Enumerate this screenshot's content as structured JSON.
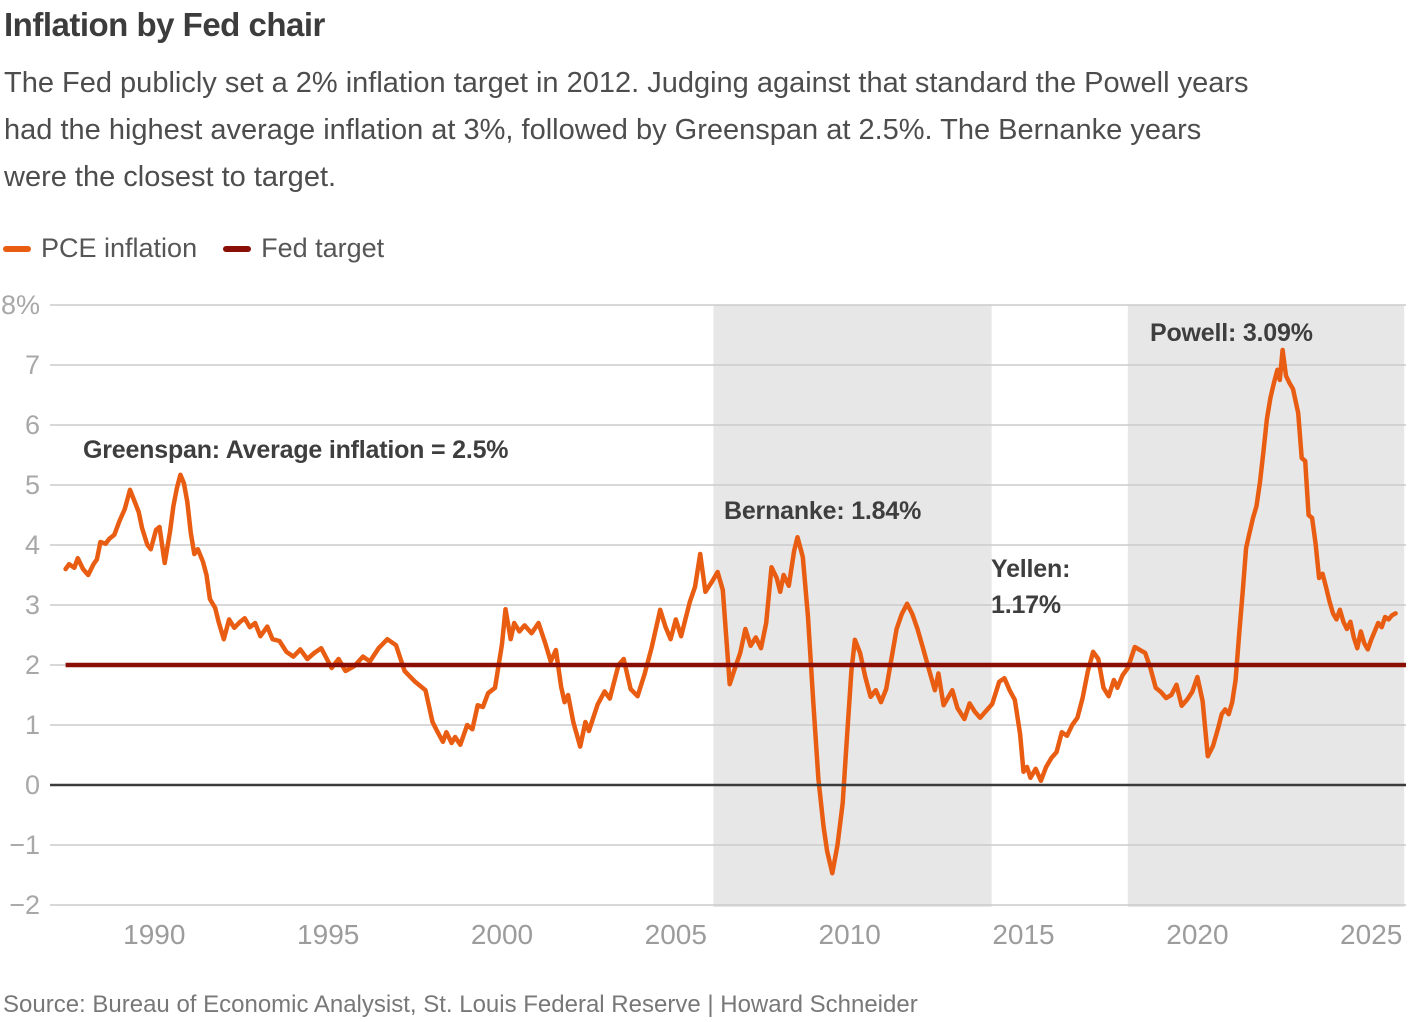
{
  "header": {
    "title": "Inflation by Fed chair",
    "subtitle_lines": [
      "The Fed publicly set a 2% inflation target in 2012. Judging against that standard the Powell years",
      "had the highest average inflation at 3%, followed by Greenspan at 2.5%. The Bernanke years",
      "were the closest to target."
    ]
  },
  "legend": {
    "items": [
      {
        "label": "PCE inflation",
        "color": "#E95D12"
      },
      {
        "label": "Fed target",
        "color": "#8A0E04"
      }
    ]
  },
  "source": "Source: Bureau of Economic Analysist, St. Louis Federal Reserve | Howard Schneider",
  "colors": {
    "pce_line": "#E95D12",
    "fed_target": "#8A0E04",
    "band": "#E7E7E7",
    "grid": "#CBCBCB",
    "zero_line": "#3B3B3B",
    "y_axis_label": "#A8A8A8",
    "x_axis_label": "#9C9C9C",
    "annotation_text": "#3E3E3E",
    "title_text": "#3C3C3C",
    "subtitle_text": "#4D4D4D",
    "source_text": "#787878",
    "background": "#FFFFFF"
  },
  "chart_data": {
    "type": "line",
    "grid": true,
    "legend_position": "top-left",
    "x_domain": [
      1987,
      2026
    ],
    "y_domain": [
      -2,
      8
    ],
    "x_ticks": [
      1990,
      1995,
      2000,
      2005,
      2010,
      2015,
      2020,
      2025
    ],
    "y_ticks": [
      {
        "value": 8,
        "label": "8%"
      },
      {
        "value": 7,
        "label": "7"
      },
      {
        "value": 6,
        "label": "6"
      },
      {
        "value": 5,
        "label": "5"
      },
      {
        "value": 4,
        "label": "4"
      },
      {
        "value": 3,
        "label": "3"
      },
      {
        "value": 2,
        "label": "2"
      },
      {
        "value": 1,
        "label": "1"
      },
      {
        "value": 0,
        "label": "0"
      },
      {
        "value": -1,
        "label": "−1"
      },
      {
        "value": -2,
        "label": "−2"
      }
    ],
    "bands": [
      {
        "name": "bernanke-era",
        "x0": 2006.08,
        "x1": 2014.08
      },
      {
        "name": "powell-era",
        "x0": 2018.0,
        "x1": 2025.95
      }
    ],
    "target_line": {
      "label": "Fed target",
      "value": 2,
      "x0": 1987.45
    },
    "annotations": [
      {
        "name": "greenspan",
        "text": "Greenspan: Average inflation = 2.5%",
        "anchor_year": 1988.0,
        "anchor_value": 5.8
      },
      {
        "name": "bernanke",
        "text": "Bernanke: 1.84%",
        "anchor_year": 2006.4,
        "anchor_value": 4.7
      },
      {
        "name": "yellen",
        "text": "Yellen: 1.17%",
        "lines": [
          "Yellen:",
          "1.17%"
        ],
        "anchor_year": 2014.1,
        "anchor_value": 3.85
      },
      {
        "name": "powell",
        "text": "Powell: 3.09%",
        "anchor_year": 2018.6,
        "anchor_value": 7.7
      }
    ],
    "series": [
      {
        "name": "PCE inflation",
        "color": "#E95D12",
        "points": [
          [
            1987.45,
            3.6
          ],
          [
            1987.55,
            3.68
          ],
          [
            1987.7,
            3.62
          ],
          [
            1987.8,
            3.78
          ],
          [
            1987.95,
            3.6
          ],
          [
            1988.1,
            3.5
          ],
          [
            1988.25,
            3.68
          ],
          [
            1988.35,
            3.76
          ],
          [
            1988.45,
            4.05
          ],
          [
            1988.6,
            4.02
          ],
          [
            1988.7,
            4.1
          ],
          [
            1988.85,
            4.17
          ],
          [
            1989.0,
            4.4
          ],
          [
            1989.15,
            4.6
          ],
          [
            1989.3,
            4.92
          ],
          [
            1989.45,
            4.7
          ],
          [
            1989.55,
            4.55
          ],
          [
            1989.65,
            4.28
          ],
          [
            1989.8,
            4.0
          ],
          [
            1989.9,
            3.93
          ],
          [
            1990.05,
            4.25
          ],
          [
            1990.15,
            4.3
          ],
          [
            1990.3,
            3.7
          ],
          [
            1990.45,
            4.22
          ],
          [
            1990.55,
            4.65
          ],
          [
            1990.65,
            4.95
          ],
          [
            1990.75,
            5.17
          ],
          [
            1990.85,
            5.03
          ],
          [
            1990.95,
            4.72
          ],
          [
            1991.05,
            4.2
          ],
          [
            1991.15,
            3.85
          ],
          [
            1991.25,
            3.93
          ],
          [
            1991.4,
            3.72
          ],
          [
            1991.5,
            3.5
          ],
          [
            1991.6,
            3.1
          ],
          [
            1991.75,
            2.95
          ],
          [
            1991.85,
            2.72
          ],
          [
            1992.0,
            2.43
          ],
          [
            1992.15,
            2.76
          ],
          [
            1992.3,
            2.62
          ],
          [
            1992.45,
            2.71
          ],
          [
            1992.6,
            2.78
          ],
          [
            1992.75,
            2.63
          ],
          [
            1992.9,
            2.7
          ],
          [
            1993.05,
            2.48
          ],
          [
            1993.25,
            2.64
          ],
          [
            1993.4,
            2.43
          ],
          [
            1993.6,
            2.4
          ],
          [
            1993.8,
            2.22
          ],
          [
            1994.0,
            2.14
          ],
          [
            1994.2,
            2.26
          ],
          [
            1994.4,
            2.1
          ],
          [
            1994.6,
            2.2
          ],
          [
            1994.8,
            2.28
          ],
          [
            1995.1,
            1.95
          ],
          [
            1995.3,
            2.1
          ],
          [
            1995.5,
            1.9
          ],
          [
            1995.75,
            1.98
          ],
          [
            1996.0,
            2.14
          ],
          [
            1996.2,
            2.06
          ],
          [
            1996.45,
            2.28
          ],
          [
            1996.7,
            2.43
          ],
          [
            1996.95,
            2.33
          ],
          [
            1997.2,
            1.9
          ],
          [
            1997.5,
            1.72
          ],
          [
            1997.8,
            1.58
          ],
          [
            1998.0,
            1.05
          ],
          [
            1998.15,
            0.88
          ],
          [
            1998.3,
            0.72
          ],
          [
            1998.4,
            0.88
          ],
          [
            1998.55,
            0.7
          ],
          [
            1998.65,
            0.8
          ],
          [
            1998.8,
            0.67
          ],
          [
            1999.0,
            1.0
          ],
          [
            1999.15,
            0.93
          ],
          [
            1999.3,
            1.33
          ],
          [
            1999.45,
            1.3
          ],
          [
            1999.6,
            1.53
          ],
          [
            1999.8,
            1.62
          ],
          [
            2000.0,
            2.35
          ],
          [
            2000.1,
            2.93
          ],
          [
            2000.25,
            2.43
          ],
          [
            2000.35,
            2.7
          ],
          [
            2000.5,
            2.56
          ],
          [
            2000.65,
            2.66
          ],
          [
            2000.85,
            2.53
          ],
          [
            2001.05,
            2.7
          ],
          [
            2001.25,
            2.35
          ],
          [
            2001.4,
            2.06
          ],
          [
            2001.55,
            2.25
          ],
          [
            2001.7,
            1.64
          ],
          [
            2001.8,
            1.38
          ],
          [
            2001.9,
            1.5
          ],
          [
            2002.05,
            1.05
          ],
          [
            2002.25,
            0.64
          ],
          [
            2002.4,
            1.05
          ],
          [
            2002.5,
            0.9
          ],
          [
            2002.75,
            1.34
          ],
          [
            2002.95,
            1.56
          ],
          [
            2003.1,
            1.44
          ],
          [
            2003.35,
            2.0
          ],
          [
            2003.5,
            2.1
          ],
          [
            2003.7,
            1.6
          ],
          [
            2003.9,
            1.48
          ],
          [
            2004.1,
            1.85
          ],
          [
            2004.3,
            2.28
          ],
          [
            2004.55,
            2.92
          ],
          [
            2004.7,
            2.64
          ],
          [
            2004.85,
            2.43
          ],
          [
            2005.0,
            2.76
          ],
          [
            2005.15,
            2.48
          ],
          [
            2005.4,
            3.05
          ],
          [
            2005.55,
            3.3
          ],
          [
            2005.7,
            3.85
          ],
          [
            2005.85,
            3.22
          ],
          [
            2006.05,
            3.4
          ],
          [
            2006.2,
            3.55
          ],
          [
            2006.35,
            3.25
          ],
          [
            2006.55,
            1.68
          ],
          [
            2006.7,
            1.95
          ],
          [
            2006.85,
            2.2
          ],
          [
            2007.0,
            2.6
          ],
          [
            2007.15,
            2.32
          ],
          [
            2007.3,
            2.46
          ],
          [
            2007.45,
            2.28
          ],
          [
            2007.6,
            2.7
          ],
          [
            2007.75,
            3.63
          ],
          [
            2007.9,
            3.45
          ],
          [
            2008.0,
            3.22
          ],
          [
            2008.1,
            3.5
          ],
          [
            2008.25,
            3.32
          ],
          [
            2008.4,
            3.9
          ],
          [
            2008.5,
            4.13
          ],
          [
            2008.65,
            3.8
          ],
          [
            2008.8,
            2.8
          ],
          [
            2008.95,
            1.4
          ],
          [
            2009.1,
            0.1
          ],
          [
            2009.25,
            -0.7
          ],
          [
            2009.35,
            -1.1
          ],
          [
            2009.5,
            -1.47
          ],
          [
            2009.65,
            -1.0
          ],
          [
            2009.8,
            -0.3
          ],
          [
            2009.9,
            0.6
          ],
          [
            2010.05,
            1.9
          ],
          [
            2010.15,
            2.42
          ],
          [
            2010.3,
            2.2
          ],
          [
            2010.45,
            1.8
          ],
          [
            2010.6,
            1.47
          ],
          [
            2010.75,
            1.58
          ],
          [
            2010.9,
            1.38
          ],
          [
            2011.05,
            1.6
          ],
          [
            2011.2,
            2.1
          ],
          [
            2011.35,
            2.6
          ],
          [
            2011.5,
            2.85
          ],
          [
            2011.65,
            3.02
          ],
          [
            2011.8,
            2.85
          ],
          [
            2011.95,
            2.6
          ],
          [
            2012.1,
            2.3
          ],
          [
            2012.3,
            1.88
          ],
          [
            2012.45,
            1.58
          ],
          [
            2012.55,
            1.86
          ],
          [
            2012.7,
            1.33
          ],
          [
            2012.85,
            1.48
          ],
          [
            2012.95,
            1.58
          ],
          [
            2013.1,
            1.28
          ],
          [
            2013.3,
            1.1
          ],
          [
            2013.45,
            1.36
          ],
          [
            2013.6,
            1.22
          ],
          [
            2013.75,
            1.12
          ],
          [
            2013.9,
            1.22
          ],
          [
            2014.1,
            1.35
          ],
          [
            2014.3,
            1.72
          ],
          [
            2014.45,
            1.78
          ],
          [
            2014.6,
            1.58
          ],
          [
            2014.75,
            1.42
          ],
          [
            2014.9,
            0.85
          ],
          [
            2015.0,
            0.22
          ],
          [
            2015.1,
            0.3
          ],
          [
            2015.2,
            0.12
          ],
          [
            2015.35,
            0.27
          ],
          [
            2015.5,
            0.07
          ],
          [
            2015.65,
            0.3
          ],
          [
            2015.8,
            0.45
          ],
          [
            2015.95,
            0.55
          ],
          [
            2016.1,
            0.88
          ],
          [
            2016.25,
            0.82
          ],
          [
            2016.4,
            1.0
          ],
          [
            2016.55,
            1.12
          ],
          [
            2016.7,
            1.45
          ],
          [
            2016.85,
            1.9
          ],
          [
            2017.0,
            2.22
          ],
          [
            2017.15,
            2.1
          ],
          [
            2017.3,
            1.62
          ],
          [
            2017.45,
            1.48
          ],
          [
            2017.6,
            1.75
          ],
          [
            2017.7,
            1.62
          ],
          [
            2017.85,
            1.83
          ],
          [
            2018.0,
            1.95
          ],
          [
            2018.2,
            2.3
          ],
          [
            2018.35,
            2.25
          ],
          [
            2018.5,
            2.2
          ],
          [
            2018.65,
            1.95
          ],
          [
            2018.8,
            1.62
          ],
          [
            2018.95,
            1.55
          ],
          [
            2019.1,
            1.45
          ],
          [
            2019.25,
            1.5
          ],
          [
            2019.4,
            1.67
          ],
          [
            2019.55,
            1.32
          ],
          [
            2019.7,
            1.42
          ],
          [
            2019.85,
            1.55
          ],
          [
            2020.0,
            1.8
          ],
          [
            2020.15,
            1.4
          ],
          [
            2020.3,
            0.48
          ],
          [
            2020.45,
            0.65
          ],
          [
            2020.6,
            0.95
          ],
          [
            2020.7,
            1.18
          ],
          [
            2020.8,
            1.26
          ],
          [
            2020.9,
            1.18
          ],
          [
            2021.0,
            1.38
          ],
          [
            2021.1,
            1.75
          ],
          [
            2021.2,
            2.5
          ],
          [
            2021.3,
            3.2
          ],
          [
            2021.4,
            3.95
          ],
          [
            2021.5,
            4.2
          ],
          [
            2021.6,
            4.45
          ],
          [
            2021.7,
            4.65
          ],
          [
            2021.8,
            5.05
          ],
          [
            2021.9,
            5.55
          ],
          [
            2022.0,
            6.1
          ],
          [
            2022.1,
            6.45
          ],
          [
            2022.2,
            6.7
          ],
          [
            2022.3,
            6.92
          ],
          [
            2022.37,
            6.75
          ],
          [
            2022.45,
            7.25
          ],
          [
            2022.55,
            6.82
          ],
          [
            2022.65,
            6.7
          ],
          [
            2022.75,
            6.6
          ],
          [
            2022.9,
            6.2
          ],
          [
            2023.0,
            5.45
          ],
          [
            2023.1,
            5.4
          ],
          [
            2023.2,
            4.5
          ],
          [
            2023.3,
            4.45
          ],
          [
            2023.4,
            4.02
          ],
          [
            2023.5,
            3.45
          ],
          [
            2023.6,
            3.52
          ],
          [
            2023.7,
            3.3
          ],
          [
            2023.8,
            3.06
          ],
          [
            2023.9,
            2.86
          ],
          [
            2024.0,
            2.76
          ],
          [
            2024.1,
            2.92
          ],
          [
            2024.2,
            2.72
          ],
          [
            2024.3,
            2.6
          ],
          [
            2024.4,
            2.72
          ],
          [
            2024.5,
            2.46
          ],
          [
            2024.6,
            2.28
          ],
          [
            2024.7,
            2.56
          ],
          [
            2024.8,
            2.36
          ],
          [
            2024.9,
            2.26
          ],
          [
            2025.0,
            2.42
          ],
          [
            2025.1,
            2.56
          ],
          [
            2025.2,
            2.7
          ],
          [
            2025.3,
            2.63
          ],
          [
            2025.4,
            2.8
          ],
          [
            2025.5,
            2.76
          ],
          [
            2025.6,
            2.83
          ],
          [
            2025.7,
            2.86
          ]
        ]
      }
    ]
  }
}
